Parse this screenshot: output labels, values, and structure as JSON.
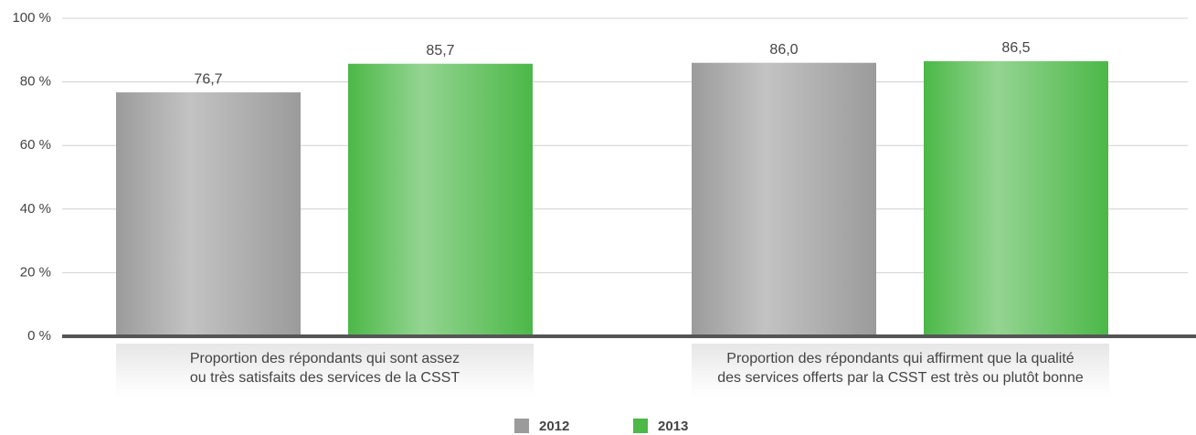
{
  "chart_data": {
    "type": "bar",
    "categories": [
      "Proportion des répondants qui sont assez\nou très satisfaits des services de la CSST",
      "Proportion des répondants qui affirment que la qualité\ndes services offerts par la CSST est très ou plutôt bonne"
    ],
    "series": [
      {
        "name": "2012",
        "color": "#9b9b9c",
        "values": [
          76.7,
          86.0
        ],
        "value_labels": [
          "76,7",
          "86,0"
        ]
      },
      {
        "name": "2013",
        "color": "#4cb848",
        "values": [
          85.7,
          86.5
        ],
        "value_labels": [
          "85,7",
          "86,5"
        ]
      }
    ],
    "ylim": [
      0,
      100
    ],
    "yticks": [
      {
        "value": 0,
        "label": "0 %"
      },
      {
        "value": 20,
        "label": "20 %"
      },
      {
        "value": 40,
        "label": "40 %"
      },
      {
        "value": 60,
        "label": "60 %"
      },
      {
        "value": 80,
        "label": "80 %"
      },
      {
        "value": 100,
        "label": "100 %"
      }
    ],
    "grid": true,
    "legend": "bottom"
  }
}
